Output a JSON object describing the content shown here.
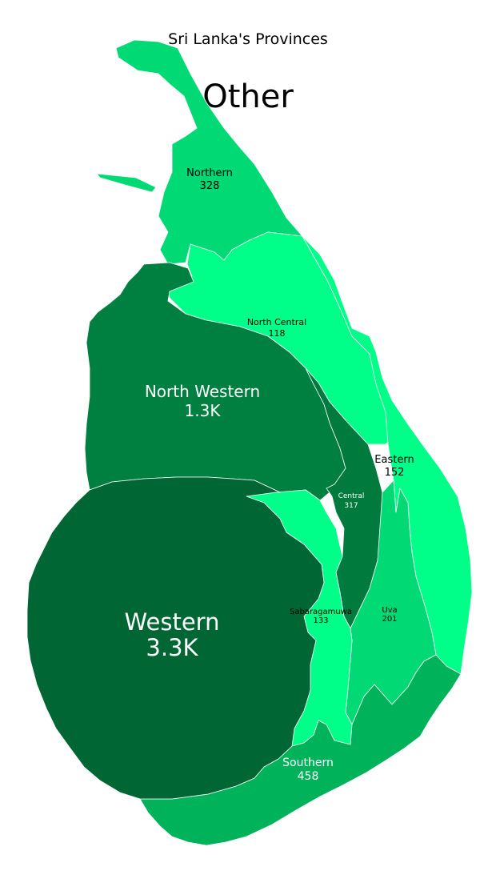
{
  "title": "Sri Lanka's Provinces",
  "subtitle": "Other",
  "regions": [
    {
      "key": "western",
      "name": "Western",
      "value": "3.3K",
      "color": "#006633",
      "text_color": "#ffffff"
    },
    {
      "key": "north-western",
      "name": "North Western",
      "value": "1.3K",
      "color": "#008040",
      "text_color": "#ffffff"
    },
    {
      "key": "southern",
      "name": "Southern",
      "value": "458",
      "color": "#00b35a",
      "text_color": "#ffffff"
    },
    {
      "key": "northern",
      "name": "Northern",
      "value": "328",
      "color": "#00d974",
      "text_color": "#000000"
    },
    {
      "key": "central",
      "name": "Central",
      "value": "317",
      "color": "#007a3d",
      "text_color": "#ffffff"
    },
    {
      "key": "uva",
      "name": "Uva",
      "value": "201",
      "color": "#00d974",
      "text_color": "#000000"
    },
    {
      "key": "eastern",
      "name": "Eastern",
      "value": "152",
      "color": "#00ff88",
      "text_color": "#000000"
    },
    {
      "key": "sabaragamuwa",
      "name": "Sabaragamuwa",
      "value": "133",
      "color": "#00ff88",
      "text_color": "#000000"
    },
    {
      "key": "north-central",
      "name": "North Central",
      "value": "118",
      "color": "#00ff88",
      "text_color": "#000000"
    }
  ]
}
